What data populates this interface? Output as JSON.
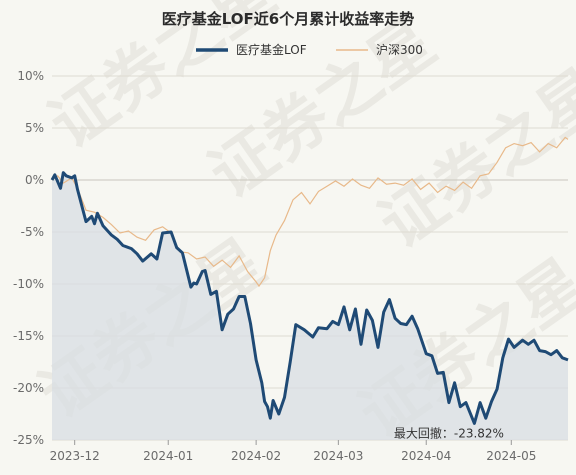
{
  "chart_data": {
    "type": "line",
    "title": "医疗基金LOF近6个月累计收益率走势",
    "ylim": [
      -25,
      10
    ],
    "yticks": [
      10,
      5,
      0,
      -5,
      -10,
      -15,
      -20,
      -25
    ],
    "ytick_labels": [
      "10%",
      "5%",
      "0%",
      "-5%",
      "-10%",
      "-15%",
      "-20%",
      "-25%"
    ],
    "xtick_labels": [
      "2023-12",
      "2024-01",
      "2024-02",
      "2024-03",
      "2024-04",
      "2024-05"
    ],
    "x_range": [
      "2023-11-20",
      "2024-05-20"
    ],
    "xtick_dates": [
      "2023-11-28",
      "2023-12-31",
      "2024-01-31",
      "2024-02-29",
      "2024-03-31",
      "2024-04-30"
    ],
    "legend_position": "top-center",
    "grid": true,
    "colors": {
      "fund": "#1f4a75",
      "index": "#e8b98a",
      "fill": "#d8dee3"
    },
    "annotation": {
      "text": "最大回撤：-23.82%",
      "date": "2024-04-08",
      "value": -23.82
    },
    "watermark": "证券之星",
    "series": [
      {
        "name": "医疗基金LOF",
        "dates": [
          "2023-11-20",
          "2023-11-21",
          "2023-11-23",
          "2023-11-24",
          "2023-11-25",
          "2023-11-27",
          "2023-11-28",
          "2023-11-29",
          "2023-12-02",
          "2023-12-04",
          "2023-12-05",
          "2023-12-06",
          "2023-12-08",
          "2023-12-11",
          "2023-12-13",
          "2023-12-15",
          "2023-12-18",
          "2023-12-20",
          "2023-12-22",
          "2023-12-25",
          "2023-12-27",
          "2023-12-29",
          "2024-01-01",
          "2024-01-03",
          "2024-01-05",
          "2024-01-08",
          "2024-01-09",
          "2024-01-10",
          "2024-01-12",
          "2024-01-13",
          "2024-01-15",
          "2024-01-17",
          "2024-01-19",
          "2024-01-21",
          "2024-01-23",
          "2024-01-25",
          "2024-01-27",
          "2024-01-29",
          "2024-01-31",
          "2024-02-02",
          "2024-02-03",
          "2024-02-04",
          "2024-02-05",
          "2024-02-06",
          "2024-02-08",
          "2024-02-10",
          "2024-02-12",
          "2024-02-14",
          "2024-02-17",
          "2024-02-20",
          "2024-02-22",
          "2024-02-25",
          "2024-02-27",
          "2024-02-29",
          "2024-03-02",
          "2024-03-04",
          "2024-03-06",
          "2024-03-08",
          "2024-03-10",
          "2024-03-12",
          "2024-03-14",
          "2024-03-16",
          "2024-03-18",
          "2024-03-20",
          "2024-03-22",
          "2024-03-24",
          "2024-03-26",
          "2024-03-28",
          "2024-03-31",
          "2024-04-02",
          "2024-04-04",
          "2024-04-06",
          "2024-04-08",
          "2024-04-10",
          "2024-04-12",
          "2024-04-14",
          "2024-04-17",
          "2024-04-19",
          "2024-04-21",
          "2024-04-23",
          "2024-04-25",
          "2024-04-27",
          "2024-04-29",
          "2024-05-01",
          "2024-05-04",
          "2024-05-06",
          "2024-05-08",
          "2024-05-10",
          "2024-05-12",
          "2024-05-14",
          "2024-05-16",
          "2024-05-18",
          "2024-05-20"
        ],
        "values": [
          0,
          0.5,
          -0.8,
          0.7,
          0.4,
          0.2,
          0.4,
          -0.9,
          -4,
          -3.5,
          -4.2,
          -3.2,
          -4.4,
          -5.3,
          -5.7,
          -6.3,
          -6.6,
          -7.1,
          -7.8,
          -7.1,
          -7.6,
          -5.1,
          -5,
          -6.5,
          -7,
          -10.3,
          -9.9,
          -10,
          -8.8,
          -8.7,
          -11,
          -10.7,
          -14.4,
          -12.9,
          -12.4,
          -11.2,
          -11.2,
          -13.8,
          -17.3,
          -19.5,
          -21.3,
          -21.8,
          -22.9,
          -21.2,
          -22.5,
          -20.9,
          -17.5,
          -13.9,
          -14.4,
          -15.1,
          -14.2,
          -14.3,
          -13.6,
          -13.9,
          -12.2,
          -14.4,
          -12.4,
          -15.8,
          -12.5,
          -13.5,
          -16.1,
          -12.7,
          -11.5,
          -13.3,
          -13.8,
          -13.9,
          -13.1,
          -14.3,
          -16.7,
          -16.9,
          -18.6,
          -18.5,
          -21.4,
          -19.5,
          -21.8,
          -21.4,
          -23.4,
          -21.4,
          -22.9,
          -21.3,
          -20.1,
          -17.1,
          -15.3,
          -16.1,
          -15.4,
          -15.8,
          -15.4,
          -16.4,
          -16.5,
          -16.8,
          -16.4,
          -17.1,
          -17.3
        ]
      },
      {
        "name": "沪深300",
        "dates": [
          "2023-11-20",
          "2023-11-22",
          "2023-11-24",
          "2023-11-27",
          "2023-11-29",
          "2023-12-02",
          "2023-12-05",
          "2023-12-08",
          "2023-12-11",
          "2023-12-14",
          "2023-12-17",
          "2023-12-20",
          "2023-12-23",
          "2023-12-26",
          "2023-12-29",
          "2024-01-01",
          "2024-01-04",
          "2024-01-07",
          "2024-01-10",
          "2024-01-13",
          "2024-01-16",
          "2024-01-19",
          "2024-01-22",
          "2024-01-25",
          "2024-01-28",
          "2024-01-31",
          "2024-02-01",
          "2024-02-03",
          "2024-02-05",
          "2024-02-07",
          "2024-02-10",
          "2024-02-13",
          "2024-02-16",
          "2024-02-19",
          "2024-02-22",
          "2024-02-25",
          "2024-02-28",
          "2024-03-02",
          "2024-03-05",
          "2024-03-08",
          "2024-03-11",
          "2024-03-14",
          "2024-03-17",
          "2024-03-20",
          "2024-03-23",
          "2024-03-26",
          "2024-03-29",
          "2024-04-01",
          "2024-04-04",
          "2024-04-07",
          "2024-04-10",
          "2024-04-13",
          "2024-04-16",
          "2024-04-19",
          "2024-04-22",
          "2024-04-25",
          "2024-04-28",
          "2024-05-01",
          "2024-05-04",
          "2024-05-07",
          "2024-05-10",
          "2024-05-13",
          "2024-05-16",
          "2024-05-19",
          "2024-05-20"
        ],
        "values": [
          0,
          0.4,
          -0.3,
          0.2,
          -0.8,
          -2.9,
          -3.1,
          -3.6,
          -4.3,
          -5.1,
          -4.9,
          -5.5,
          -5.8,
          -4.8,
          -4.5,
          -5.1,
          -6.9,
          -7,
          -7.6,
          -7.4,
          -8.3,
          -7.7,
          -8.4,
          -7.3,
          -8.8,
          -9.8,
          -10.2,
          -9.4,
          -6.8,
          -5.3,
          -3.9,
          -1.9,
          -1.2,
          -2.3,
          -1.1,
          -0.6,
          -0.1,
          -0.6,
          0.1,
          -0.5,
          -0.8,
          0.2,
          -0.4,
          -0.3,
          -0.5,
          0.1,
          -0.9,
          -0.3,
          -1.2,
          -0.6,
          -1,
          -0.2,
          -0.8,
          0.4,
          0.6,
          1.7,
          3.1,
          3.5,
          3.3,
          3.6,
          2.7,
          3.5,
          3.1,
          4.1,
          3.9
        ]
      }
    ]
  }
}
